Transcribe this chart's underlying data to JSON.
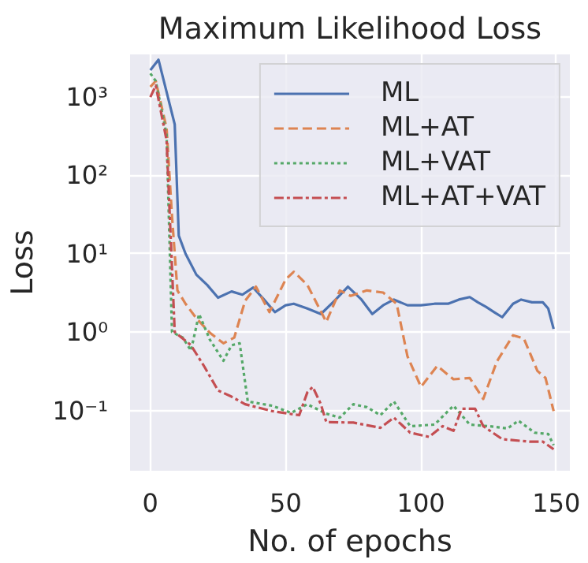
{
  "chart_data": {
    "type": "line",
    "title": "Maximum Likelihood Loss",
    "xlabel": "No. of epochs",
    "ylabel": "Loss",
    "log": "y",
    "grid": true,
    "legend": "top right",
    "xlim": [
      -7.5,
      155
    ],
    "xticks": [
      0,
      50,
      100,
      150
    ],
    "ylim": [
      0.017,
      3500
    ],
    "yticks": [
      {
        "value": 0.1,
        "label": "10⁻¹"
      },
      {
        "value": 1,
        "label": "10⁰"
      },
      {
        "value": 10,
        "label": "10¹"
      },
      {
        "value": 100,
        "label": "10²"
      },
      {
        "value": 1000,
        "label": "10³"
      }
    ],
    "series": [
      {
        "name": "ML",
        "color": "#4c72b0",
        "line_style": "solid",
        "x": [
          0,
          3,
          9,
          10.5,
          13,
          17,
          21,
          25,
          30,
          34,
          38,
          42,
          46,
          50,
          53,
          58,
          63,
          68,
          73,
          78,
          82,
          86,
          90,
          95,
          100,
          105,
          110,
          114,
          118,
          121,
          124,
          127,
          130,
          134,
          137,
          141,
          145,
          147,
          149
        ],
        "values": [
          2200,
          3000,
          450,
          17,
          10,
          5.4,
          4,
          2.75,
          3.3,
          3.0,
          3.7,
          2.6,
          1.8,
          2.2,
          2.3,
          2.0,
          1.7,
          2.5,
          3.8,
          2.6,
          1.7,
          2.2,
          2.6,
          2.2,
          2.2,
          2.3,
          2.3,
          2.6,
          2.8,
          2.4,
          2.1,
          1.8,
          1.55,
          2.3,
          2.6,
          2.4,
          2.4,
          2.0,
          1.1
        ]
      },
      {
        "name": "ML+AT",
        "color": "#dd8452",
        "line_style": "dashed",
        "x": [
          0,
          2,
          6,
          8,
          10,
          13,
          17,
          22,
          27,
          31,
          35,
          39,
          44,
          50,
          53,
          58,
          65,
          70,
          74,
          80,
          86,
          91,
          95,
          100,
          106,
          112,
          118,
          123,
          128,
          134,
          138,
          143,
          146,
          149
        ],
        "values": [
          1350,
          1600,
          400,
          30,
          3.4,
          2.3,
          1.5,
          0.98,
          0.72,
          0.85,
          2.5,
          3.8,
          1.8,
          4.7,
          5.9,
          4.0,
          1.35,
          3.4,
          2.9,
          3.4,
          3.2,
          2.3,
          0.49,
          0.2,
          0.37,
          0.25,
          0.26,
          0.14,
          0.42,
          0.91,
          0.83,
          0.32,
          0.26,
          0.098
        ]
      },
      {
        "name": "ML+VAT",
        "color": "#55a868",
        "line_style": "dotted",
        "x": [
          0,
          2,
          6,
          8,
          12,
          15,
          18,
          22,
          27,
          30,
          33,
          36,
          45,
          52,
          58,
          65,
          70,
          75,
          80,
          85,
          90,
          96,
          105,
          112,
          118,
          125,
          132,
          136,
          142,
          147,
          149
        ],
        "values": [
          2000,
          1600,
          330,
          1.0,
          0.85,
          0.58,
          1.7,
          0.8,
          0.43,
          0.68,
          0.72,
          0.13,
          0.115,
          0.093,
          0.12,
          0.091,
          0.081,
          0.12,
          0.11,
          0.087,
          0.13,
          0.063,
          0.066,
          0.115,
          0.066,
          0.063,
          0.059,
          0.074,
          0.052,
          0.05,
          0.036
        ]
      },
      {
        "name": "ML+AT+VAT",
        "color": "#c44e52",
        "line_style": "dashdot",
        "x": [
          0,
          2,
          6,
          9,
          15,
          20,
          25,
          30,
          35,
          45,
          55,
          58,
          60,
          63,
          65,
          75,
          85,
          90,
          96,
          103,
          108,
          112,
          115,
          120,
          123,
          130,
          140,
          145,
          149
        ],
        "values": [
          1000,
          1400,
          280,
          1.0,
          0.68,
          0.36,
          0.18,
          0.15,
          0.12,
          0.098,
          0.087,
          0.17,
          0.2,
          0.12,
          0.071,
          0.07,
          0.06,
          0.081,
          0.052,
          0.046,
          0.063,
          0.055,
          0.105,
          0.105,
          0.063,
          0.043,
          0.04,
          0.04,
          0.032
        ]
      }
    ]
  }
}
